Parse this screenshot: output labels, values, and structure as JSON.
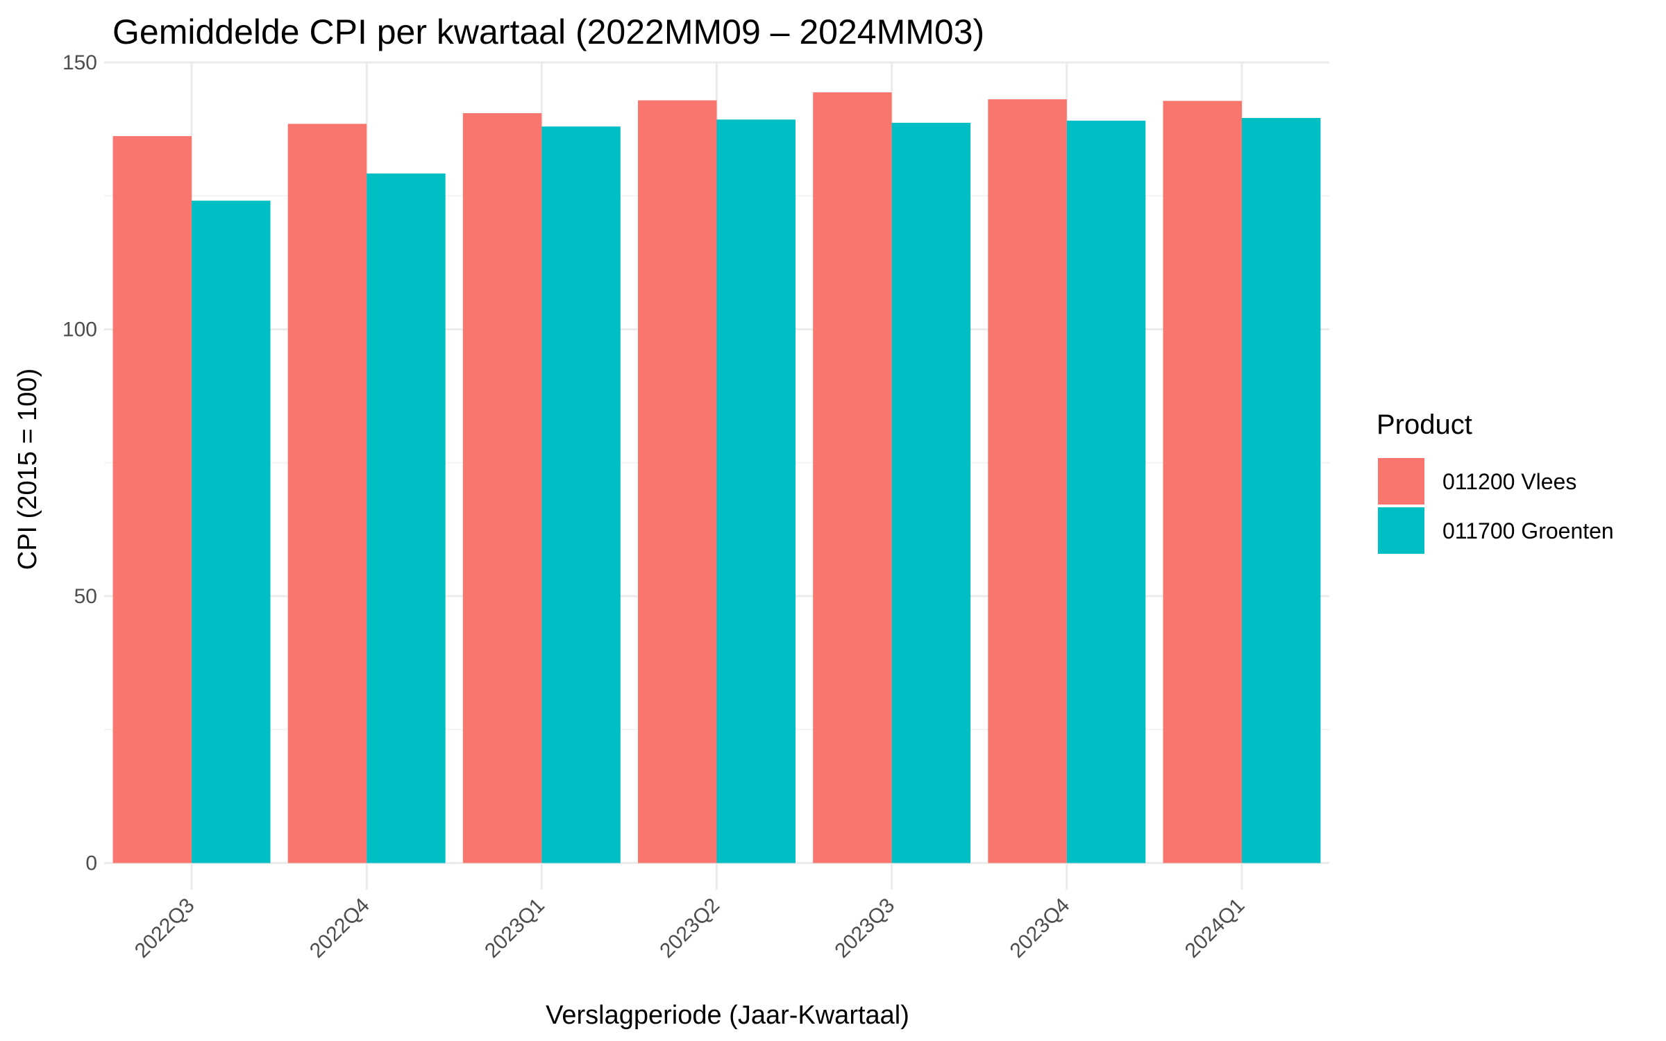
{
  "chart_data": {
    "type": "bar",
    "title": "Gemiddelde CPI per kwartaal (2022MM09 – 2024MM03)",
    "xlabel": "Verslagperiode (Jaar-Kwartaal)",
    "ylabel": "CPI (2015 = 100)",
    "categories": [
      "2022Q3",
      "2022Q4",
      "2023Q1",
      "2023Q2",
      "2023Q3",
      "2023Q4",
      "2024Q1"
    ],
    "series": [
      {
        "name": "011200 Vlees",
        "color": "#F8766D",
        "values": [
          136.2,
          138.5,
          140.5,
          142.9,
          144.4,
          143.1,
          142.8
        ]
      },
      {
        "name": "011700 Groenten",
        "color": "#00BFC4",
        "values": [
          124.1,
          129.2,
          138.0,
          139.3,
          138.7,
          139.1,
          139.6
        ]
      }
    ],
    "ylim": [
      -5,
      150
    ],
    "yticks": [
      0,
      50,
      100,
      150
    ],
    "yticks_minor": [
      25,
      75,
      125
    ],
    "grid": true,
    "legend": {
      "title": "Product",
      "position": "right"
    }
  }
}
